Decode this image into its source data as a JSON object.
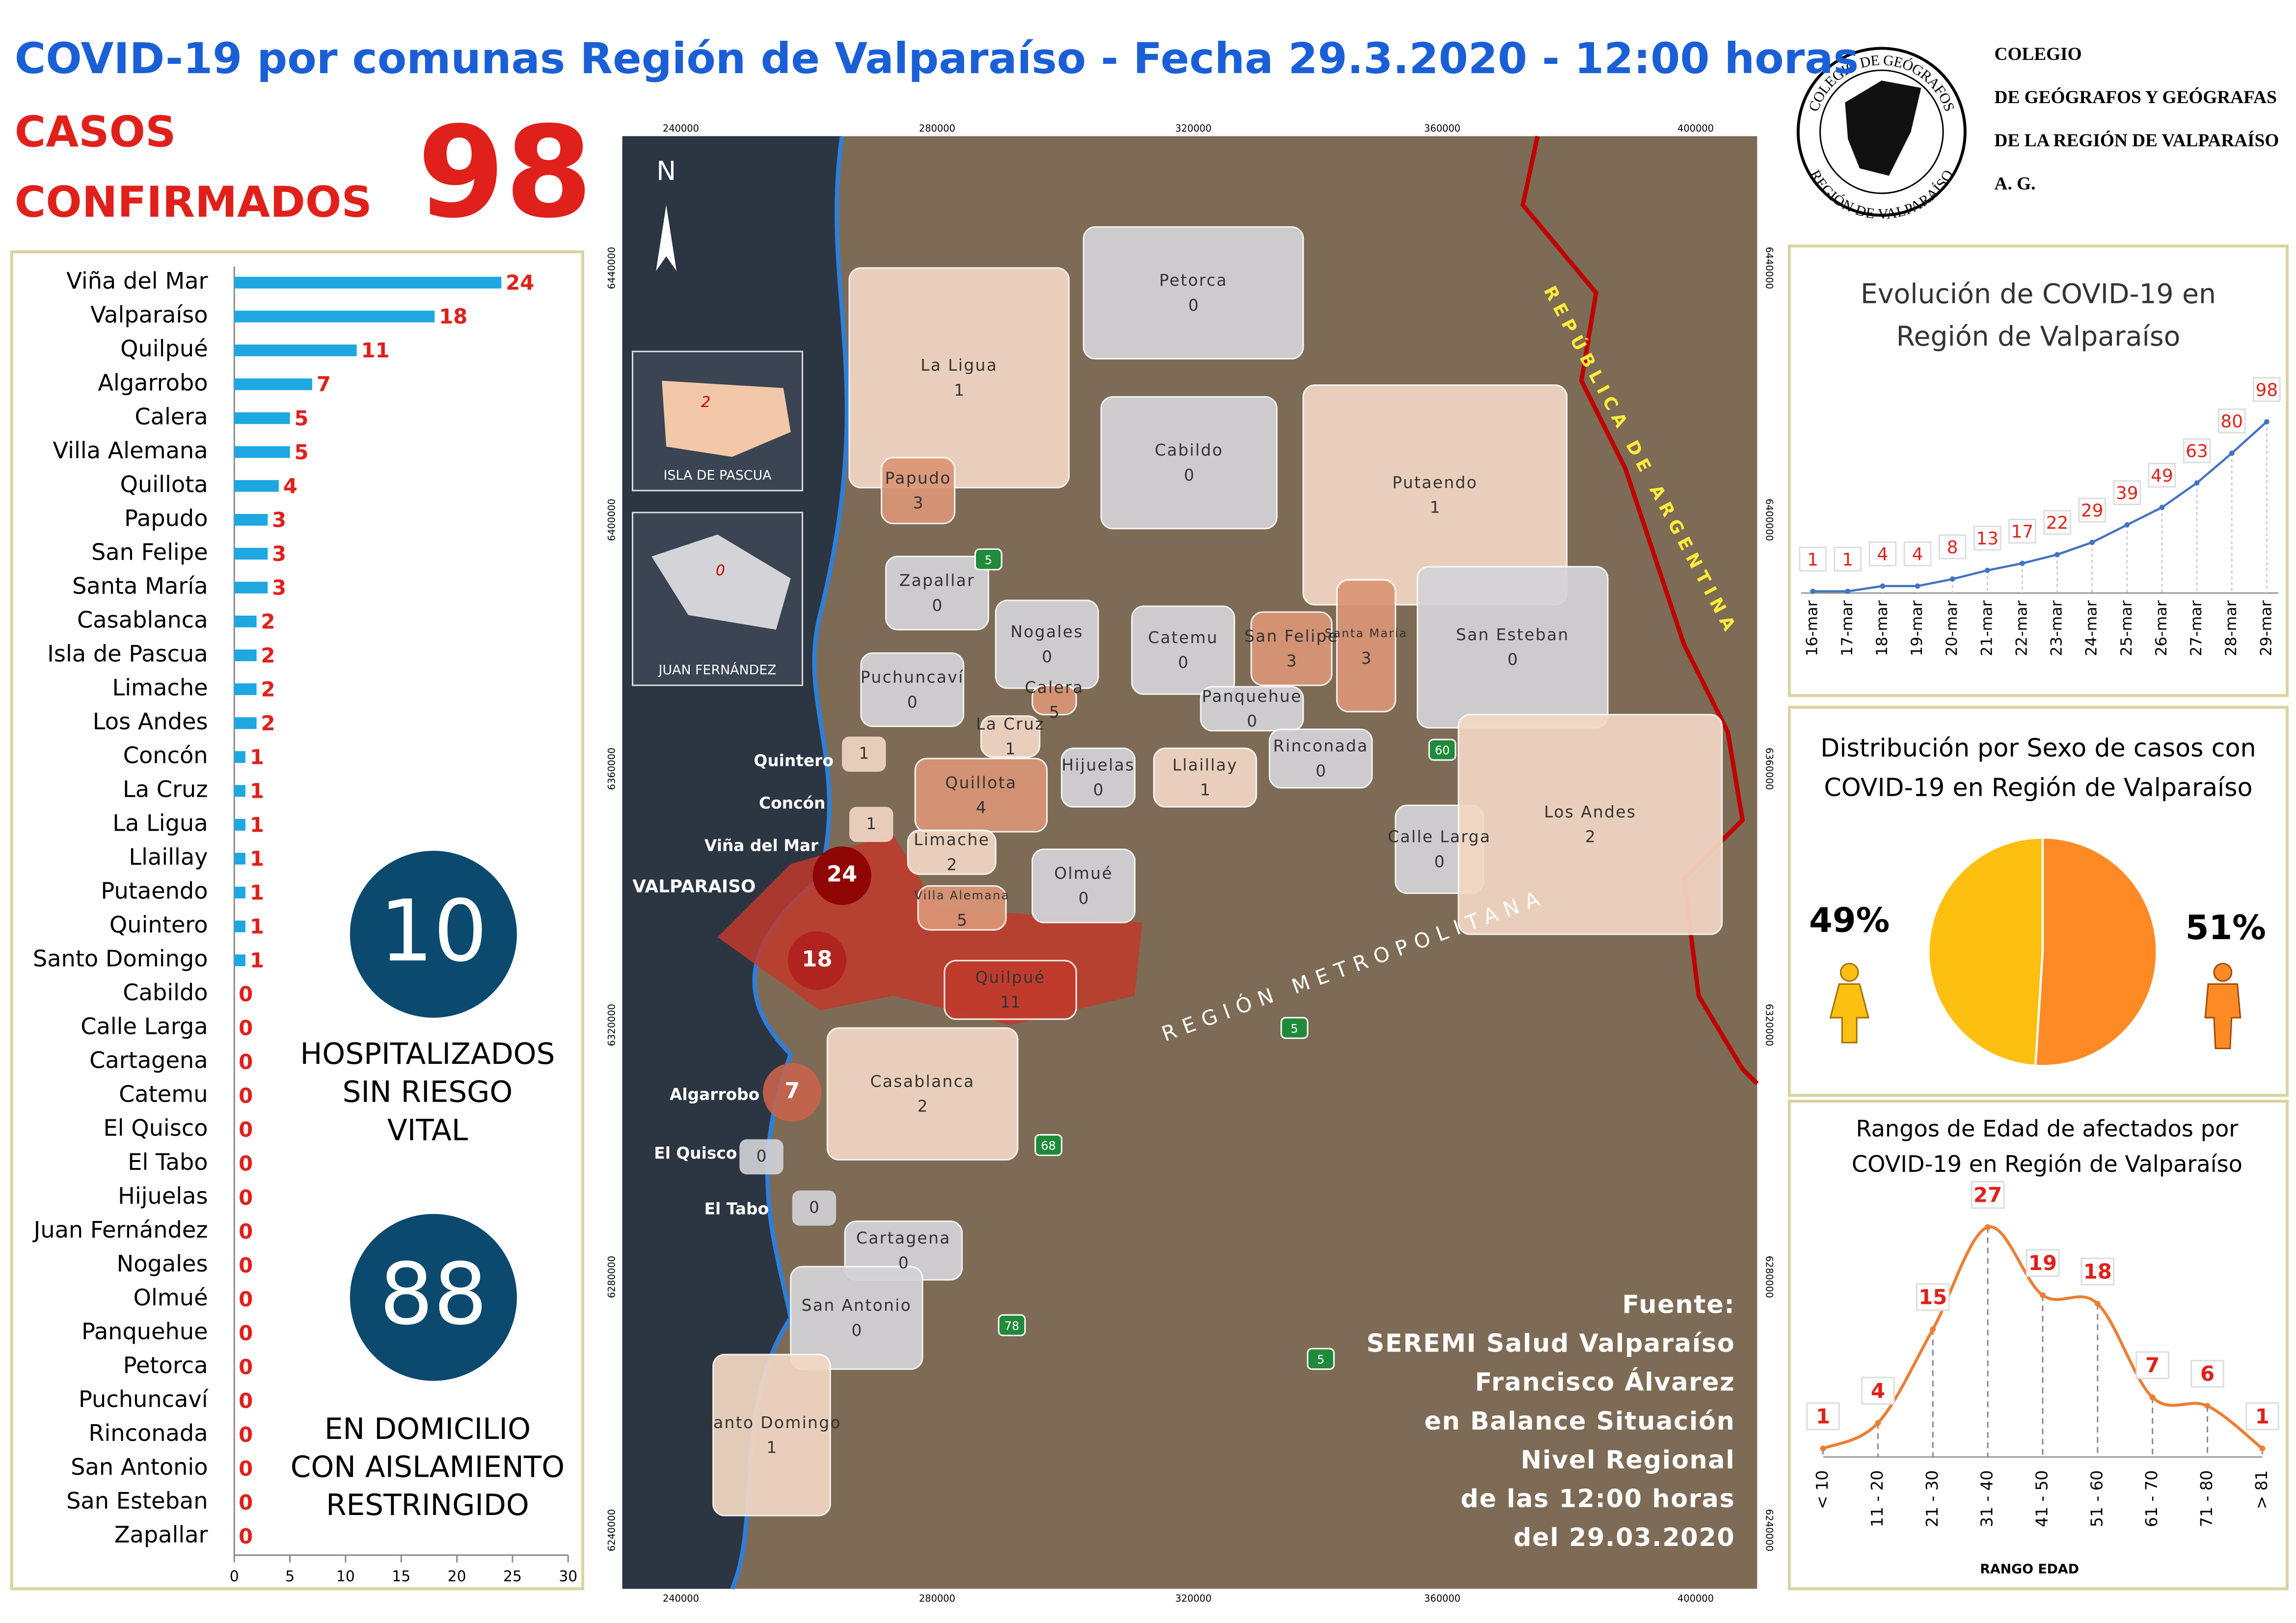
{
  "header": {
    "title": "COVID-19 por comunas Región de Valparaíso - Fecha 29.3.2020 - 12:00 horas",
    "cases_label": [
      "CASOS",
      "CONFIRMADOS"
    ],
    "cases": 98,
    "logo": {
      "top": "COLEGIO DE GEÓGRAFOS",
      "bottom": "REGIÓN DE VALPARAÍSO"
    },
    "organization": [
      "COLEGIO",
      "DE GEÓGRAFOS Y GEÓGRAFAS",
      "DE LA REGIÓN DE VALPARAÍSO",
      "A. G."
    ]
  },
  "stats": [
    {
      "value": 10,
      "lines": [
        "HOSPITALIZADOS",
        "SIN RIESGO",
        "VITAL"
      ]
    },
    {
      "value": 88,
      "lines": [
        "EN DOMICILIO",
        "CON AISLAMIENTO",
        "RESTRINGIDO"
      ]
    }
  ],
  "chart_data": [
    {
      "type": "hbar",
      "categories": [
        "Viña del Mar",
        "Valparaíso",
        "Quilpué",
        "Algarrobo",
        "Calera",
        "Villa Alemana",
        "Quillota",
        "Papudo",
        "San Felipe",
        "Santa María",
        "Casablanca",
        "Isla de Pascua",
        "Limache",
        "Los Andes",
        "Concón",
        "La Cruz",
        "La Ligua",
        "Llaillay",
        "Putaendo",
        "Quintero",
        "Santo Domingo",
        "Cabildo",
        "Calle Larga",
        "Cartagena",
        "Catemu",
        "El Quisco",
        "El Tabo",
        "Hijuelas",
        "Juan Fernández",
        "Nogales",
        "Olmué",
        "Panquehue",
        "Petorca",
        "Puchuncaví",
        "Rinconada",
        "San Antonio",
        "San Esteban",
        "Zapallar"
      ],
      "values": [
        24,
        18,
        11,
        7,
        5,
        5,
        4,
        3,
        3,
        3,
        2,
        2,
        2,
        2,
        1,
        1,
        1,
        1,
        1,
        1,
        1,
        0,
        0,
        0,
        0,
        0,
        0,
        0,
        0,
        0,
        0,
        0,
        0,
        0,
        0,
        0,
        0,
        0
      ],
      "color": "#1ea7e1",
      "label_color": "#e0201b",
      "xlim": [
        0,
        30
      ],
      "xticks": [
        0,
        5,
        10,
        15,
        20,
        25,
        30
      ]
    },
    {
      "type": "line",
      "title": [
        "Evolución de COVID-19 en",
        "Región de Valparaíso"
      ],
      "categories": [
        "16-mar",
        "17-mar",
        "18-mar",
        "19-mar",
        "20-mar",
        "21-mar",
        "22-mar",
        "23-mar",
        "24-mar",
        "25-mar",
        "26-mar",
        "27-mar",
        "28-mar",
        "29-mar"
      ],
      "values": [
        1,
        1,
        4,
        4,
        8,
        13,
        17,
        22,
        29,
        39,
        49,
        63,
        80,
        98
      ],
      "color": "#4472c4",
      "label_color": "#e0201b"
    },
    {
      "type": "pie",
      "title": [
        "Distribución por Sexo de casos con",
        "COVID-19 en Región de Valparaíso"
      ],
      "values": [
        49,
        51
      ],
      "value_labels": [
        "49%",
        "51%"
      ],
      "colors": [
        "#fdbf10",
        "#fd8a25"
      ]
    },
    {
      "type": "curve",
      "title": [
        "Rangos de Edad de afectados por",
        "COVID-19 en Región de Valparaíso"
      ],
      "categories": [
        "< 10",
        "11 - 20",
        "21 - 30",
        "31 - 40",
        "41 - 50",
        "51 - 60",
        "61 - 70",
        "71 - 80",
        "> 81"
      ],
      "values": [
        1,
        4,
        15,
        27,
        19,
        18,
        7,
        6,
        1
      ],
      "color": "#ed7d31",
      "label_color": "#e0201b",
      "xlabel": "RANGO EDAD"
    }
  ],
  "map": {
    "north": "N",
    "xticks": [
      240000,
      280000,
      320000,
      360000,
      400000
    ],
    "yticks": [
      6440000,
      6400000,
      6360000,
      6320000,
      6280000,
      6240000
    ],
    "regions": [
      {
        "name": "Petorca",
        "value": 0
      },
      {
        "name": "La Ligua",
        "value": 1
      },
      {
        "name": "Cabildo",
        "value": 0
      },
      {
        "name": "Papudo",
        "value": 3
      },
      {
        "name": "Putaendo",
        "value": 1
      },
      {
        "name": "Zapallar",
        "value": 0
      },
      {
        "name": "Nogales",
        "value": 0
      },
      {
        "name": "Catemu",
        "value": 0
      },
      {
        "name": "San Felipe",
        "value": 3
      },
      {
        "name": "Santa María",
        "value": 3
      },
      {
        "name": "San Esteban",
        "value": 0
      },
      {
        "name": "Puchuncaví",
        "value": 0
      },
      {
        "name": "Panquehue",
        "value": 0
      },
      {
        "name": "Calera",
        "value": 5
      },
      {
        "name": "La Cruz",
        "value": 1
      },
      {
        "name": "Hijuelas",
        "value": 0
      },
      {
        "name": "Llaillay",
        "value": 1
      },
      {
        "name": "Rinconada",
        "value": 0
      },
      {
        "name": "Quillota",
        "value": 4
      },
      {
        "name": "Limache",
        "value": 2
      },
      {
        "name": "Olmué",
        "value": 0
      },
      {
        "name": "Villa Alemana",
        "value": 5
      },
      {
        "name": "Quilpué",
        "value": 11
      },
      {
        "name": "Calle Larga",
        "value": 0
      },
      {
        "name": "Los Andes",
        "value": 2
      },
      {
        "name": "Casablanca",
        "value": 2
      },
      {
        "name": "Cartagena",
        "value": 0
      },
      {
        "name": "San Antonio",
        "value": 0
      },
      {
        "name": "Santo Domingo",
        "value": 1
      }
    ],
    "coast": [
      {
        "name": "Quintero",
        "value": 1
      },
      {
        "name": "Concón",
        "value": 1
      },
      {
        "name": "Viña del Mar",
        "value": 24
      },
      {
        "name": "VALPARAISO",
        "value": 18
      },
      {
        "name": "Algarrobo",
        "value": 7
      },
      {
        "name": "El Quisco",
        "value": 0
      },
      {
        "name": "El Tabo",
        "value": 0
      }
    ],
    "insets": [
      {
        "name": "ISLA DE PASCUA",
        "value": 2
      },
      {
        "name": "JUAN FERNÁNDEZ",
        "value": 0
      }
    ],
    "region_label": "REGIÓN METROPOLITANA",
    "country_label": "REPÚBLICA DE ARGENTINA",
    "routes": [
      5,
      60,
      68,
      78,
      5,
      5
    ],
    "source": [
      "Fuente:",
      "SEREMI Salud Valparaíso",
      "Francisco Álvarez",
      "en Balance Situación",
      "Nivel Regional",
      "de las 12:00 horas",
      "del 29.03.2020"
    ]
  }
}
